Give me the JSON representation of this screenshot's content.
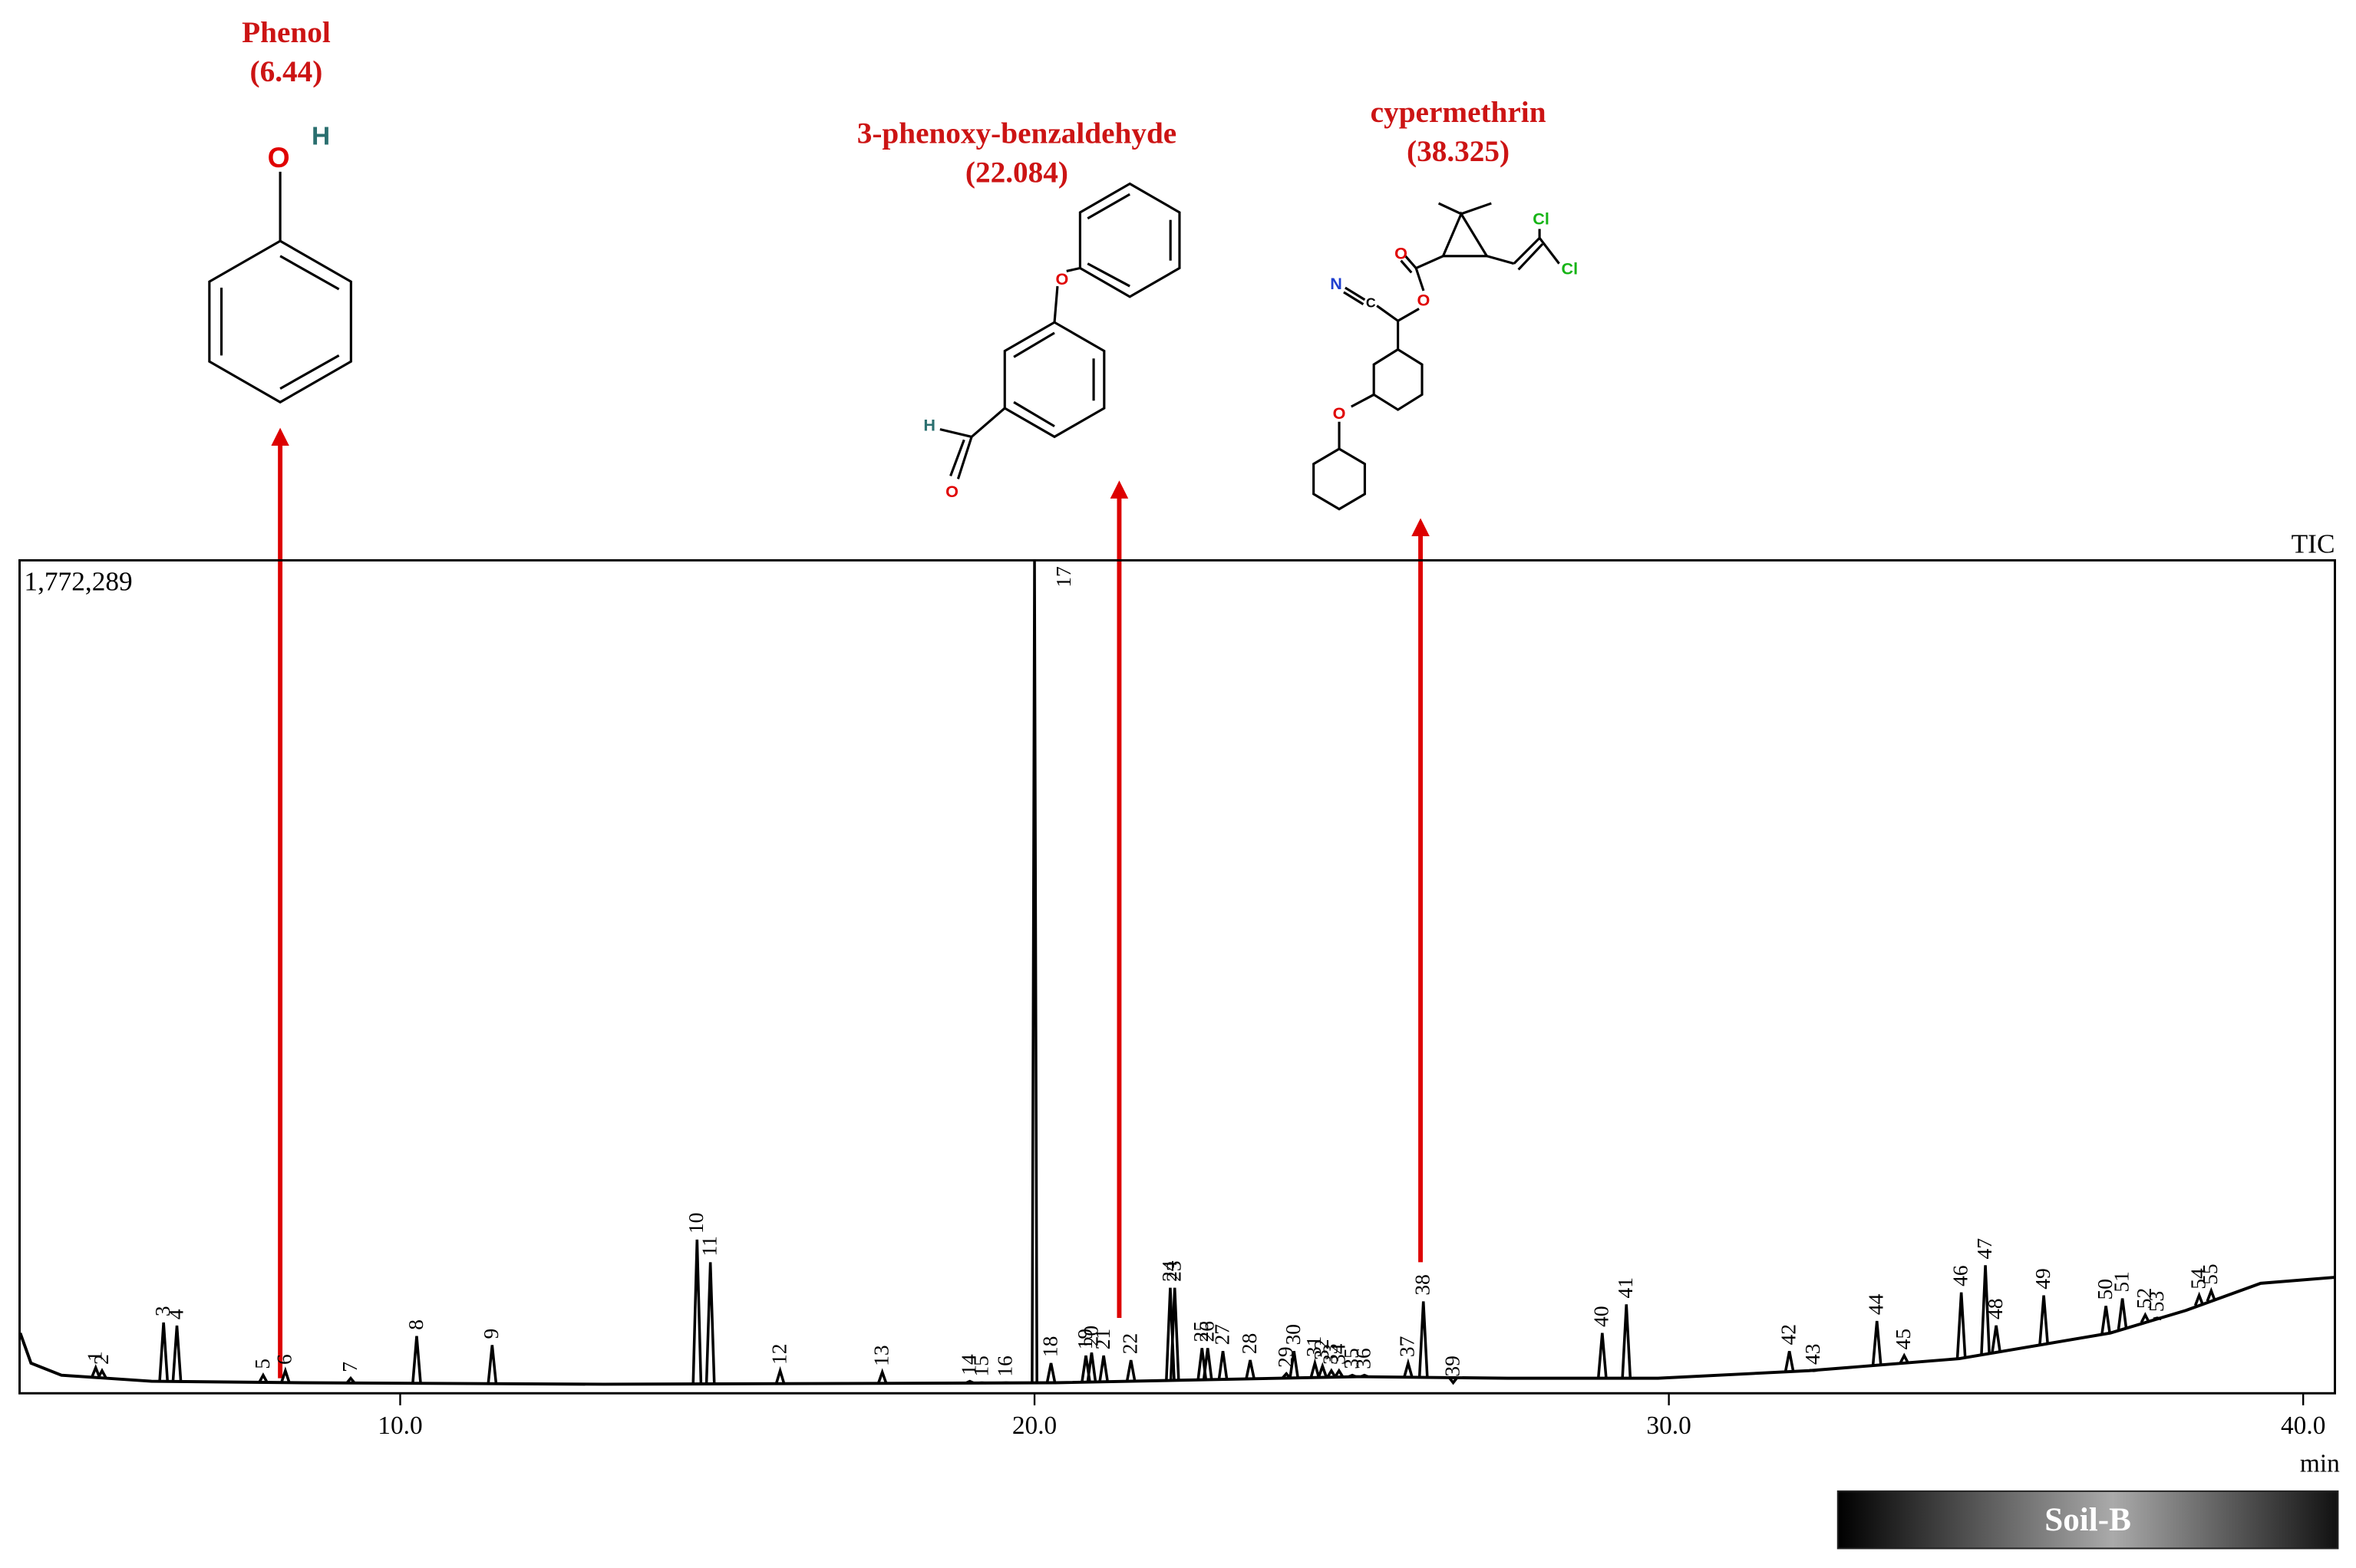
{
  "chart_data": {
    "type": "chromatogram",
    "series": [
      {
        "name": "TIC",
        "color": "#000000",
        "x": [
          4.01,
          4.18,
          4.66,
          6.08,
          8.46,
          13.21,
          20.33,
          25.08,
          27.46,
          29.83,
          32.21,
          34.58,
          36.96,
          38.15,
          39.33,
          40.5
        ],
        "values": [
          128200,
          64100,
          38500,
          25600,
          22400,
          19200,
          22400,
          35300,
          32000,
          32000,
          48100,
          73700,
          128200,
          176300,
          234000,
          246800
        ]
      }
    ],
    "peaks": {
      "labels": [
        "1",
        "2",
        "3",
        "4",
        "5",
        "6",
        "7",
        "8",
        "9",
        "10",
        "11",
        "12",
        "13",
        "14",
        "15",
        "16",
        "17",
        "18",
        "19",
        "20",
        "21",
        "22",
        "23",
        "24",
        "25",
        "26",
        "27",
        "28",
        "29",
        "30",
        "31",
        "32",
        "33",
        "34",
        "35",
        "36",
        "37",
        "38",
        "39",
        "40",
        "41",
        "42",
        "43",
        "44",
        "45",
        "46",
        "47",
        "48",
        "49",
        "50",
        "51",
        "52",
        "53",
        "54",
        "55"
      ],
      "x": [
        5.2,
        5.3,
        6.27,
        6.48,
        7.84,
        8.19,
        9.22,
        10.26,
        11.45,
        14.68,
        14.89,
        15.99,
        17.6,
        18.98,
        19.17,
        19.55,
        20.0,
        20.26,
        20.81,
        20.9,
        21.09,
        21.52,
        22.21,
        22.14,
        22.64,
        22.73,
        22.97,
        23.4,
        23.97,
        24.09,
        24.42,
        24.54,
        24.68,
        24.8,
        25.01,
        25.2,
        25.89,
        26.13,
        26.6,
        28.95,
        29.33,
        31.9,
        32.28,
        33.28,
        33.71,
        34.61,
        34.99,
        35.16,
        35.91,
        36.89,
        37.15,
        37.51,
        37.7,
        38.36,
        38.55
      ],
      "values": [
        54500,
        48000,
        150600,
        144000,
        38500,
        48000,
        32000,
        121800,
        102600,
        326900,
        278800,
        48000,
        44900,
        25600,
        22400,
        22400,
        1772289,
        64100,
        80100,
        86500,
        80100,
        70500,
        224400,
        224400,
        96200,
        96200,
        89700,
        70500,
        41700,
        89700,
        64100,
        57700,
        48000,
        48000,
        38500,
        38500,
        64100,
        195500,
        22400,
        128200,
        189100,
        89700,
        48000,
        153800,
        80100,
        214700,
        272400,
        144200,
        208300,
        185900,
        201900,
        166700,
        160200,
        208300,
        218000
      ]
    },
    "xlim": [
      4.0,
      40.5
    ],
    "xticks": [
      {
        "value": 10,
        "label": "10.0"
      },
      {
        "value": 20,
        "label": "20.0"
      },
      {
        "value": 30,
        "label": "30.0"
      },
      {
        "value": 40,
        "label": "40.0"
      }
    ],
    "x_label": "min",
    "ylim": [
      0,
      1772289
    ],
    "yticks": [
      {
        "value": 1772289,
        "label": "1,772,289"
      }
    ],
    "annotations": [
      {
        "name": "Phenol",
        "rt": "(6.44)",
        "atoms": [
          "O",
          "H"
        ]
      },
      {
        "name": "3-phenoxy-benzaldehyde",
        "rt": "(22.084)",
        "atoms": [
          "O",
          "H",
          "O"
        ]
      },
      {
        "name": "cypermethrin",
        "rt": "(38.325)",
        "atoms": [
          "O",
          "O",
          "N",
          "C",
          "Cl",
          "Cl",
          "O"
        ]
      }
    ],
    "sample": "Soil-B"
  }
}
